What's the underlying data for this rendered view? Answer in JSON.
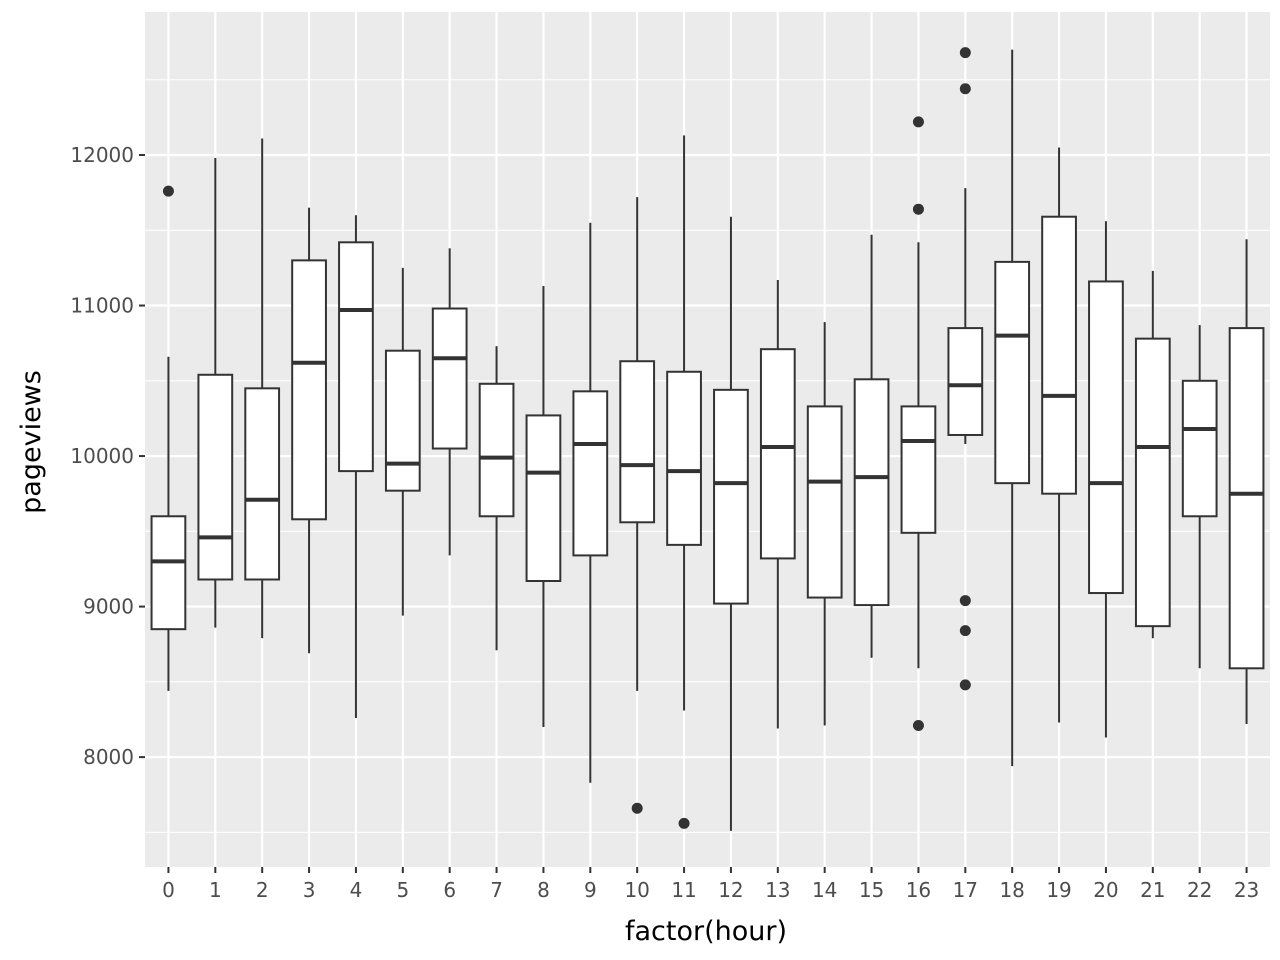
{
  "chart_data": {
    "type": "boxplot",
    "xlabel": "factor(hour)",
    "ylabel": "pageviews",
    "ylim": [
      7270,
      12950
    ],
    "y_ticks": [
      8000,
      9000,
      10000,
      11000,
      12000
    ],
    "y_tick_labels": [
      "8000",
      "9000",
      "10000",
      "11000",
      "12000"
    ],
    "grid": true,
    "colors": {
      "panel": "#ebebeb",
      "grid": "#ffffff",
      "box_fill": "#ffffff",
      "box_line": "#333333",
      "tick_text": "#4d4d4d"
    },
    "categories": [
      "0",
      "1",
      "2",
      "3",
      "4",
      "5",
      "6",
      "7",
      "8",
      "9",
      "10",
      "11",
      "12",
      "13",
      "14",
      "15",
      "16",
      "17",
      "18",
      "19",
      "20",
      "21",
      "22",
      "23"
    ],
    "boxes": [
      {
        "hour": "0",
        "whisker_low": 8440,
        "q1": 8850,
        "median": 9300,
        "q3": 9600,
        "whisker_high": 10660,
        "outliers": [
          11760
        ]
      },
      {
        "hour": "1",
        "whisker_low": 8860,
        "q1": 9180,
        "median": 9460,
        "q3": 10540,
        "whisker_high": 11980,
        "outliers": []
      },
      {
        "hour": "2",
        "whisker_low": 8790,
        "q1": 9180,
        "median": 9710,
        "q3": 10450,
        "whisker_high": 12110,
        "outliers": []
      },
      {
        "hour": "3",
        "whisker_low": 8690,
        "q1": 9580,
        "median": 10620,
        "q3": 11300,
        "whisker_high": 11650,
        "outliers": []
      },
      {
        "hour": "4",
        "whisker_low": 8260,
        "q1": 9900,
        "median": 10970,
        "q3": 11420,
        "whisker_high": 11600,
        "outliers": []
      },
      {
        "hour": "5",
        "whisker_low": 8940,
        "q1": 9770,
        "median": 9950,
        "q3": 10700,
        "whisker_high": 11250,
        "outliers": []
      },
      {
        "hour": "6",
        "whisker_low": 9340,
        "q1": 10050,
        "median": 10650,
        "q3": 10980,
        "whisker_high": 11380,
        "outliers": []
      },
      {
        "hour": "7",
        "whisker_low": 8710,
        "q1": 9600,
        "median": 9990,
        "q3": 10480,
        "whisker_high": 10730,
        "outliers": []
      },
      {
        "hour": "8",
        "whisker_low": 8200,
        "q1": 9170,
        "median": 9890,
        "q3": 10270,
        "whisker_high": 11130,
        "outliers": []
      },
      {
        "hour": "9",
        "whisker_low": 7830,
        "q1": 9340,
        "median": 10080,
        "q3": 10430,
        "whisker_high": 11550,
        "outliers": []
      },
      {
        "hour": "10",
        "whisker_low": 8440,
        "q1": 9560,
        "median": 9940,
        "q3": 10630,
        "whisker_high": 11720,
        "outliers": [
          7660
        ]
      },
      {
        "hour": "11",
        "whisker_low": 8310,
        "q1": 9410,
        "median": 9900,
        "q3": 10560,
        "whisker_high": 12130,
        "outliers": [
          7560
        ]
      },
      {
        "hour": "12",
        "whisker_low": 7510,
        "q1": 9020,
        "median": 9820,
        "q3": 10440,
        "whisker_high": 11590,
        "outliers": []
      },
      {
        "hour": "13",
        "whisker_low": 8190,
        "q1": 9320,
        "median": 10060,
        "q3": 10710,
        "whisker_high": 11170,
        "outliers": []
      },
      {
        "hour": "14",
        "whisker_low": 8210,
        "q1": 9060,
        "median": 9830,
        "q3": 10330,
        "whisker_high": 10890,
        "outliers": []
      },
      {
        "hour": "15",
        "whisker_low": 8660,
        "q1": 9010,
        "median": 9860,
        "q3": 10510,
        "whisker_high": 11470,
        "outliers": []
      },
      {
        "hour": "16",
        "whisker_low": 8590,
        "q1": 9490,
        "median": 10100,
        "q3": 10330,
        "whisker_high": 11420,
        "outliers": [
          12220,
          11640,
          8210
        ]
      },
      {
        "hour": "17",
        "whisker_low": 10080,
        "q1": 10140,
        "median": 10470,
        "q3": 10850,
        "whisker_high": 11780,
        "outliers": [
          12680,
          12440,
          9040,
          8840,
          8480
        ]
      },
      {
        "hour": "18",
        "whisker_low": 7940,
        "q1": 9820,
        "median": 10800,
        "q3": 11290,
        "whisker_high": 12700,
        "outliers": []
      },
      {
        "hour": "19",
        "whisker_low": 8230,
        "q1": 9750,
        "median": 10400,
        "q3": 11590,
        "whisker_high": 12050,
        "outliers": []
      },
      {
        "hour": "20",
        "whisker_low": 8130,
        "q1": 9090,
        "median": 9820,
        "q3": 11160,
        "whisker_high": 11560,
        "outliers": []
      },
      {
        "hour": "21",
        "whisker_low": 8790,
        "q1": 8870,
        "median": 10060,
        "q3": 10780,
        "whisker_high": 11230,
        "outliers": []
      },
      {
        "hour": "22",
        "whisker_low": 8590,
        "q1": 9600,
        "median": 10180,
        "q3": 10500,
        "whisker_high": 10870,
        "outliers": []
      },
      {
        "hour": "23",
        "whisker_low": 8220,
        "q1": 8590,
        "median": 9750,
        "q3": 10850,
        "whisker_high": 11440,
        "outliers": []
      }
    ]
  }
}
